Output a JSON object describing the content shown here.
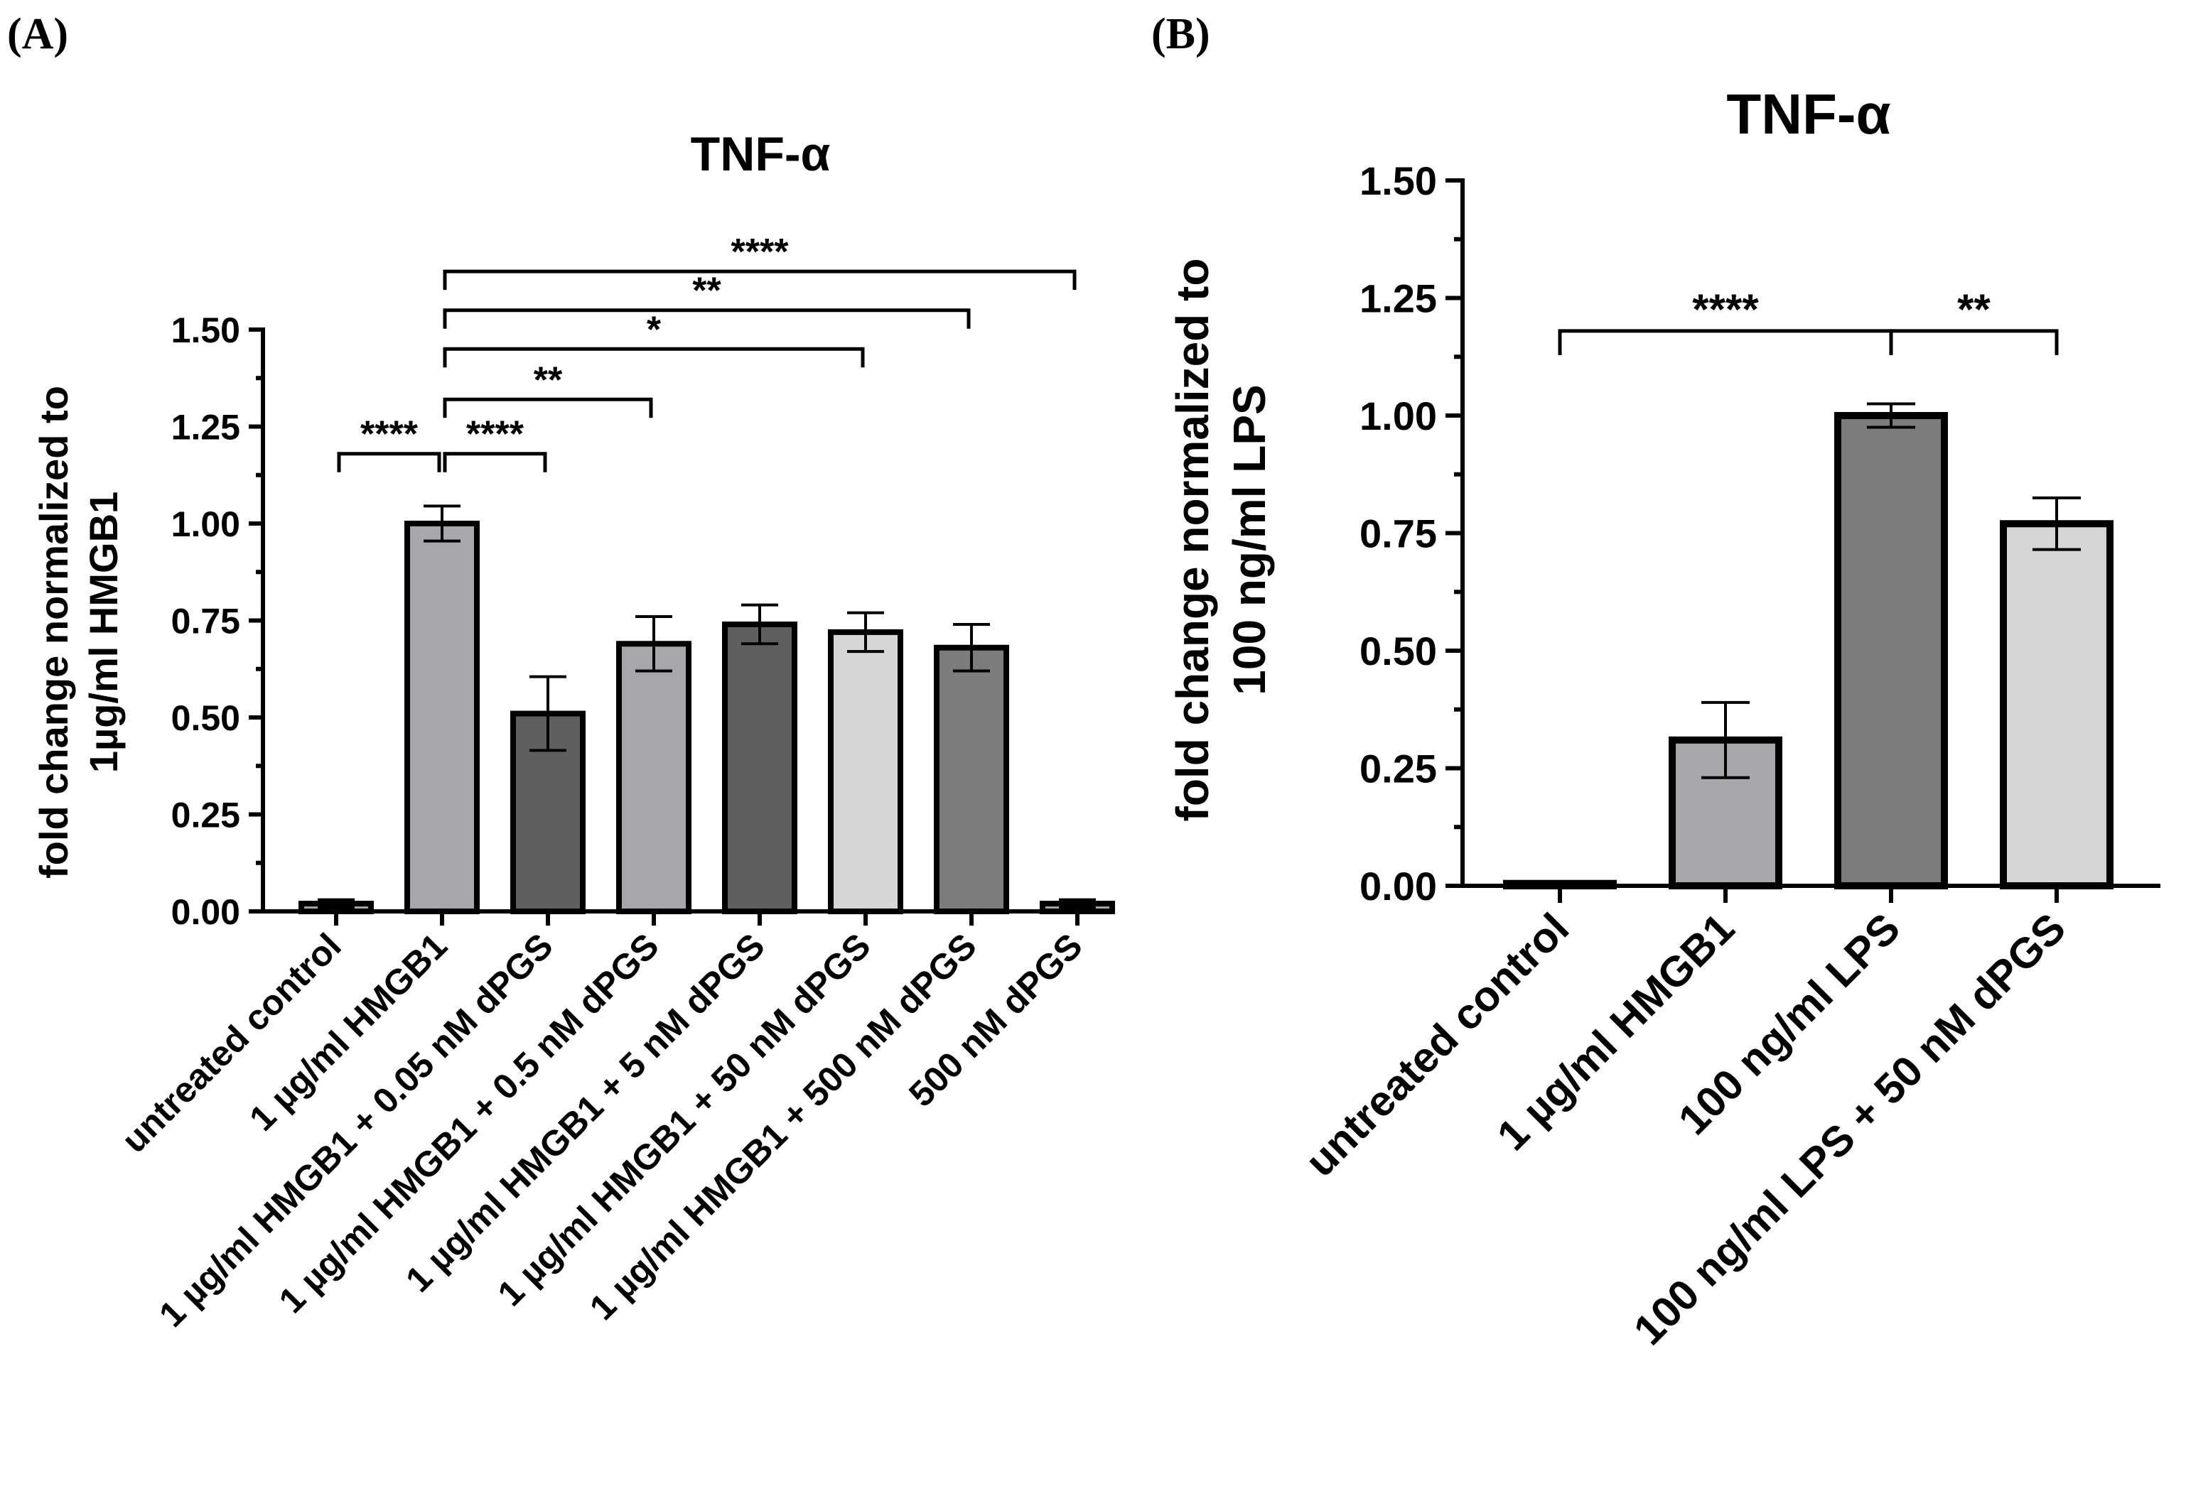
{
  "panels": {
    "a_label": "(A)",
    "b_label": "(B)"
  },
  "chart_data": [
    {
      "type": "bar",
      "panel": "A",
      "title": "TNF-α",
      "ylabel_line1": "fold change normalized to",
      "ylabel_line2": "1µg/ml HMGB1",
      "xlabel": "",
      "ylim": [
        0,
        1.5
      ],
      "yticks": [
        0,
        0.25,
        0.5,
        0.75,
        1.0,
        1.25,
        1.5
      ],
      "ytick_labels": [
        "0.00",
        "0.25",
        "0.50",
        "0.75",
        "1.00",
        "1.25",
        "1.50"
      ],
      "categories": [
        "untreated control",
        "1 µg/ml HMGB1",
        "1 µg/ml HMGB1 + 0.05 nM dPGS",
        "1 µg/ml HMGB1 + 0.5 nM dPGS",
        "1 µg/ml HMGB1 + 5 nM dPGS",
        "1 µg/ml HMGB1 + 50 nM dPGS",
        "1 µg/ml HMGB1 + 500 nM dPGS",
        "500 nM dPGS"
      ],
      "values": [
        0.02,
        1.0,
        0.51,
        0.69,
        0.74,
        0.72,
        0.68,
        0.02
      ],
      "errors": [
        0.01,
        0.045,
        0.095,
        0.07,
        0.05,
        0.05,
        0.06,
        0.01
      ],
      "colors": [
        "#a7a7ab",
        "#a7a7ab",
        "#5f5f5f",
        "#a7a7ab",
        "#5f5f5f",
        "#d6d6d6",
        "#7c7c7c",
        "#a7a7ab"
      ],
      "significance": [
        {
          "from": 0,
          "to": 1,
          "label": "****",
          "level": 1.18
        },
        {
          "from": 1,
          "to": 2,
          "label": "****",
          "level": 1.18
        },
        {
          "from": 1,
          "to": 3,
          "label": "**",
          "level": 1.32
        },
        {
          "from": 1,
          "to": 5,
          "label": "*",
          "level": 1.45
        },
        {
          "from": 1,
          "to": 6,
          "label": "**",
          "level": 1.55
        },
        {
          "from": 1,
          "to": 7,
          "label": "****",
          "level": 1.65
        }
      ]
    },
    {
      "type": "bar",
      "panel": "B",
      "title": "TNF-α",
      "ylabel_line1": "fold change normalized to",
      "ylabel_line2": "100 ng/ml LPS",
      "xlabel": "",
      "ylim": [
        0,
        1.5
      ],
      "yticks": [
        0,
        0.25,
        0.5,
        0.75,
        1.0,
        1.25,
        1.5
      ],
      "ytick_labels": [
        "0.00",
        "0.25",
        "0.50",
        "0.75",
        "1.00",
        "1.25",
        "1.50"
      ],
      "categories": [
        "untreated control",
        "1 µg/ml HMGB1",
        "100 ng/ml LPS",
        "100 ng/ml LPS + 50 nM dPGS"
      ],
      "values": [
        0.005,
        0.31,
        1.0,
        0.77
      ],
      "errors": [
        0.0,
        0.08,
        0.025,
        0.055
      ],
      "colors": [
        "#a7a7ab",
        "#a7a7ab",
        "#7c7c7c",
        "#d6d6d6"
      ],
      "significance": [
        {
          "from": 0,
          "to": 2,
          "label": "****",
          "level": 1.18
        },
        {
          "from": 2,
          "to": 3,
          "label": "**",
          "level": 1.18
        }
      ]
    }
  ]
}
